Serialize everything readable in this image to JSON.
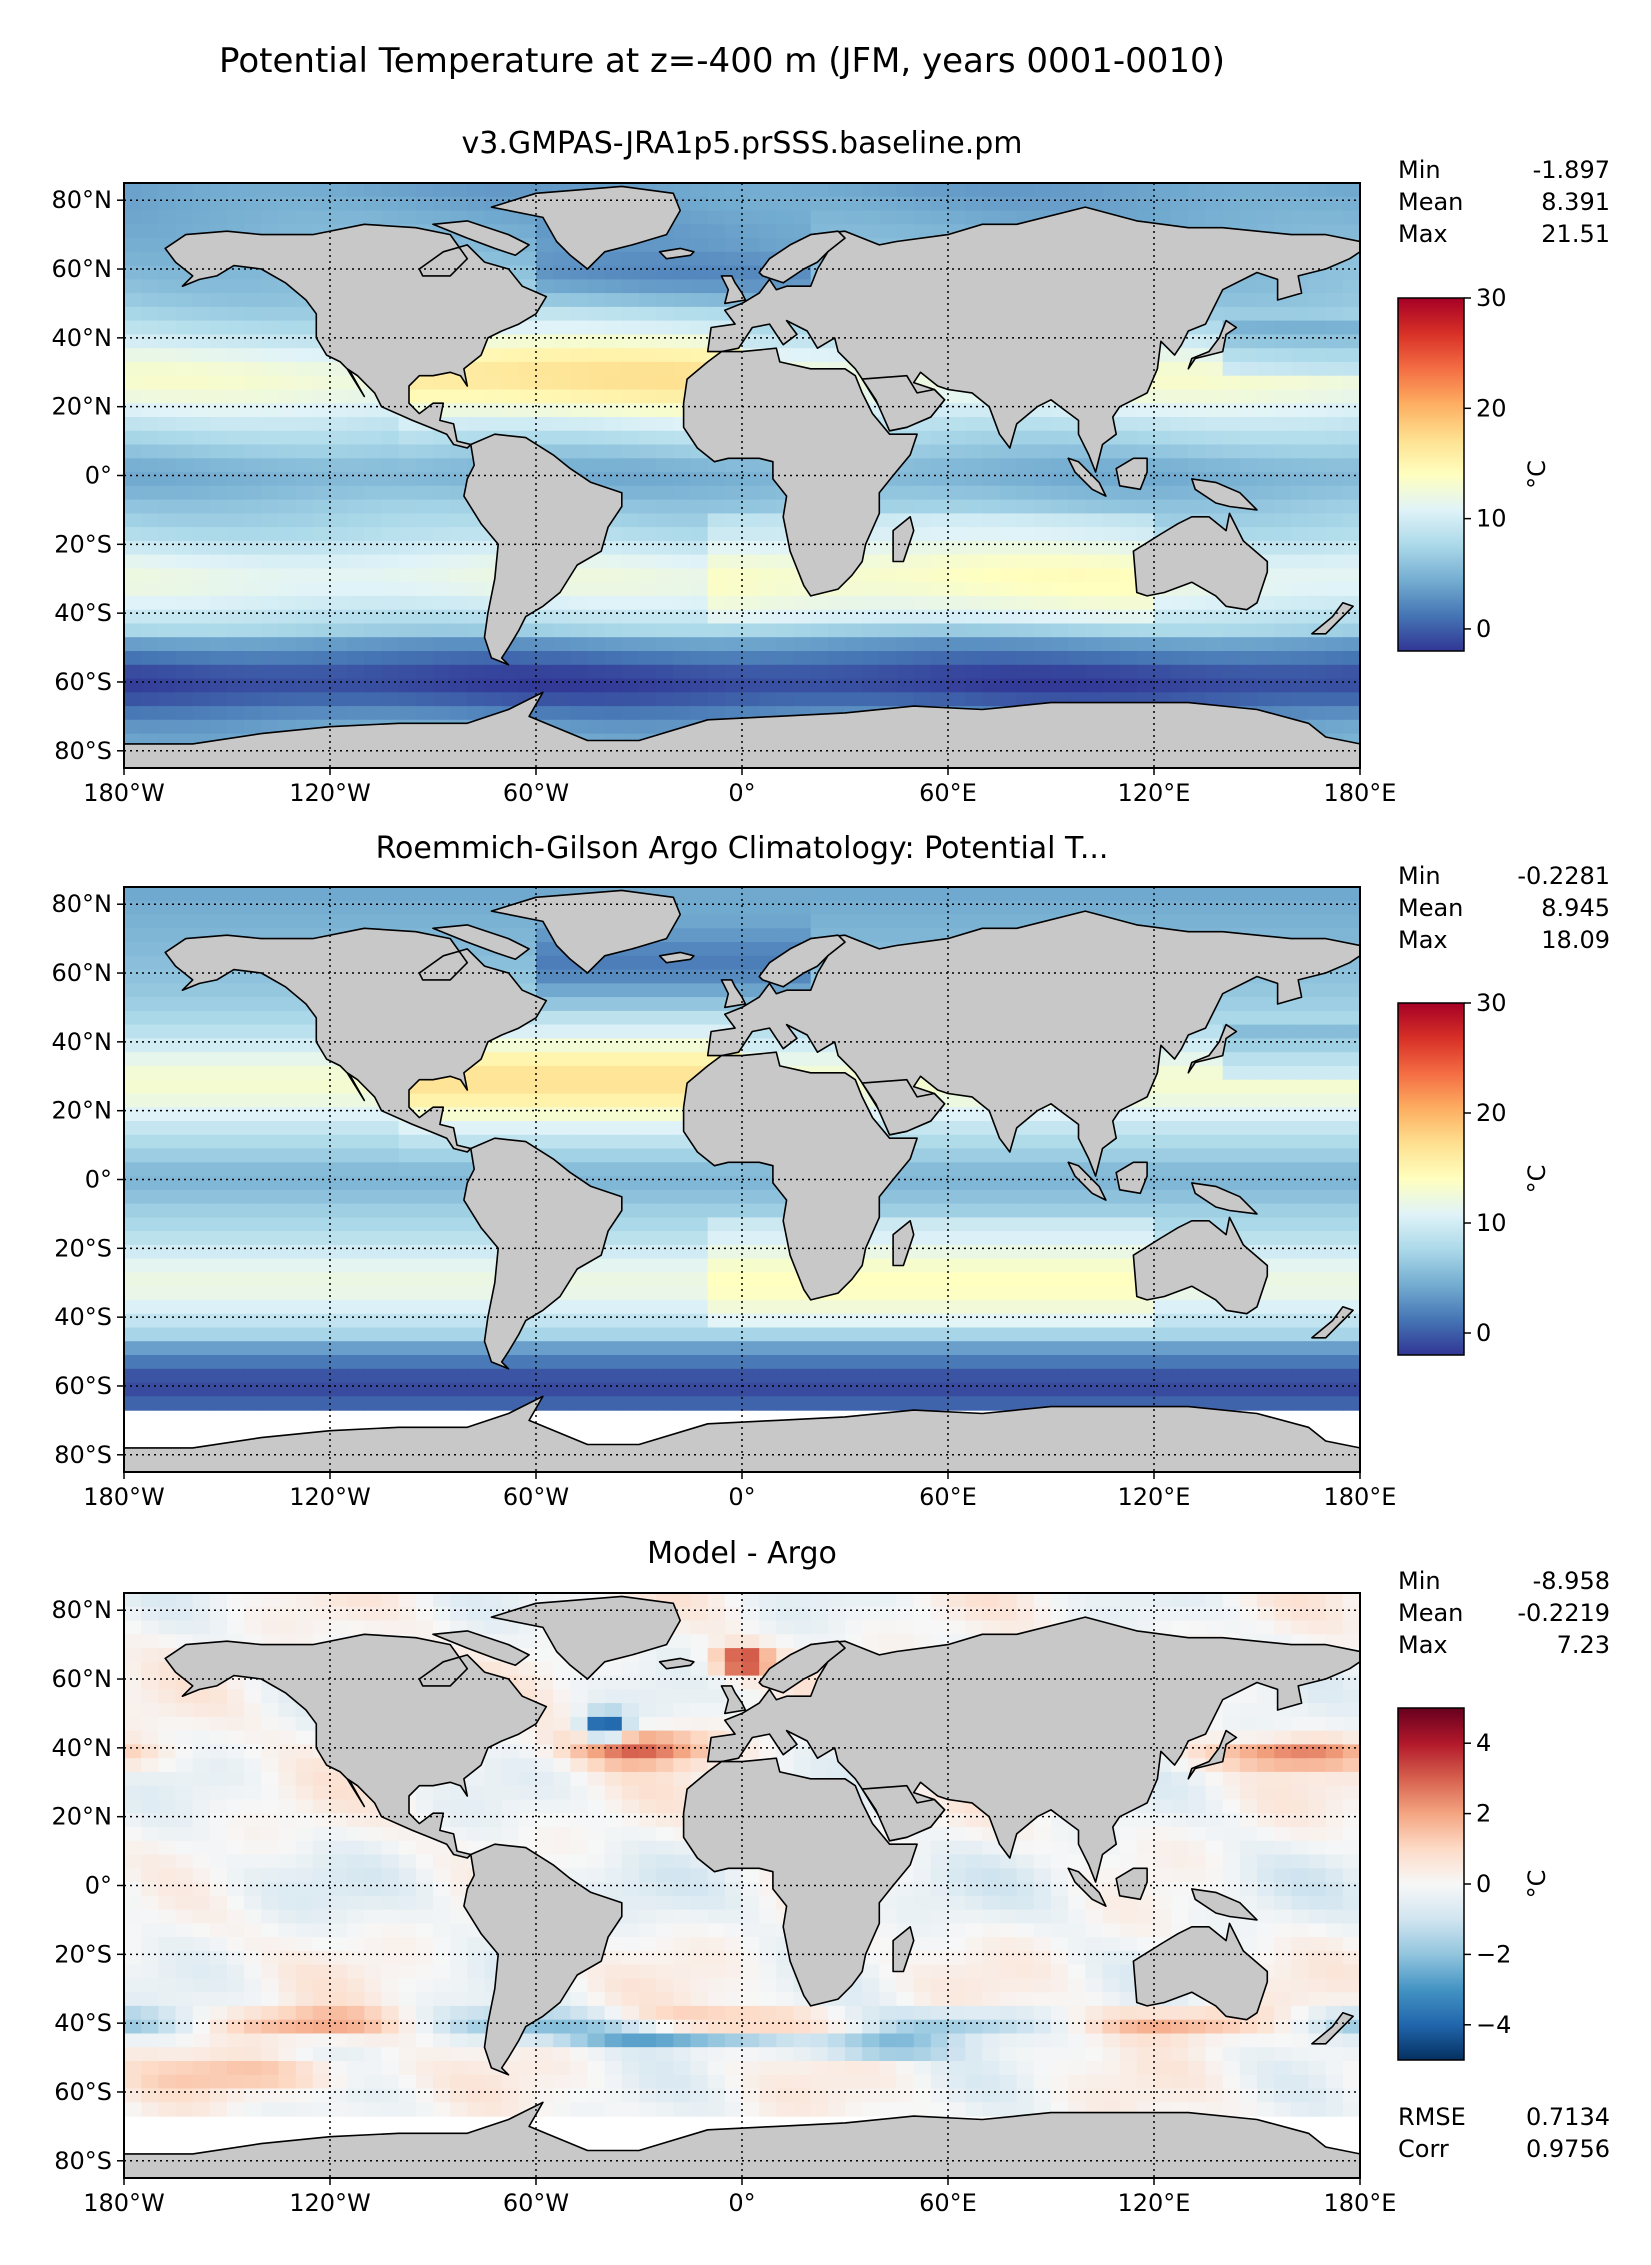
{
  "figure": {
    "suptitle": "Potential Temperature at z=-400 m (JFM, years 0001-0010)"
  },
  "colors": {
    "land": "#c8c8c8",
    "coast": "#000000",
    "sst_scale": [
      "#313695",
      "#4575b4",
      "#74add1",
      "#abd9e9",
      "#e0f3f8",
      "#ffffbf",
      "#fee090",
      "#fdae61",
      "#f46d43",
      "#d73027",
      "#a50026"
    ],
    "diff_scale": [
      "#053061",
      "#2166ac",
      "#4393c3",
      "#92c5de",
      "#d1e5f0",
      "#f7f7f7",
      "#fddbc7",
      "#f4a582",
      "#d6604d",
      "#b2182b",
      "#67001f"
    ]
  },
  "axes": {
    "lon_ticks": [
      "180°W",
      "120°W",
      "60°W",
      "0°",
      "60°E",
      "120°E",
      "180°E"
    ],
    "lat_ticks": [
      "80°N",
      "60°N",
      "40°N",
      "20°N",
      "0°",
      "20°S",
      "40°S",
      "60°S",
      "80°S"
    ]
  },
  "chart_data": [
    {
      "type": "heatmap",
      "title": "v3.GMPAS-JRA1p5.prSSS.baseline.pm",
      "field": "model",
      "stats": [
        {
          "label": "Min",
          "value": "-1.897"
        },
        {
          "label": "Mean",
          "value": "8.391"
        },
        {
          "label": "Max",
          "value": "21.51"
        }
      ],
      "colorbar": {
        "label": "°C",
        "range": [
          -2,
          30
        ],
        "ticks": [
          "0",
          "10",
          "20",
          "30"
        ],
        "tick_values": [
          0,
          10,
          20,
          30
        ]
      },
      "x_range": [
        -180,
        180
      ],
      "y_range": [
        -85,
        85
      ]
    },
    {
      "type": "heatmap",
      "title": "Roemmich-Gilson Argo Climatology: Potential T...",
      "field": "obs",
      "stats": [
        {
          "label": "Min",
          "value": "-0.2281"
        },
        {
          "label": "Mean",
          "value": "8.945"
        },
        {
          "label": "Max",
          "value": "18.09"
        }
      ],
      "colorbar": {
        "label": "°C",
        "range": [
          -2,
          30
        ],
        "ticks": [
          "0",
          "10",
          "20",
          "30"
        ],
        "tick_values": [
          0,
          10,
          20,
          30
        ]
      },
      "x_range": [
        -180,
        180
      ],
      "y_range": [
        -85,
        85
      ]
    },
    {
      "type": "heatmap",
      "title": "Model - Argo",
      "field": "diff",
      "stats": [
        {
          "label": "Min",
          "value": "-8.958"
        },
        {
          "label": "Mean",
          "value": "-0.2219"
        },
        {
          "label": "Max",
          "value": "7.23"
        }
      ],
      "extra_stats": [
        {
          "label": "RMSE",
          "value": "0.7134"
        },
        {
          "label": "Corr",
          "value": "0.9756"
        }
      ],
      "colorbar": {
        "label": "°C",
        "range": [
          -5,
          5
        ],
        "ticks": [
          "4",
          "2",
          "0",
          "−2",
          "−4"
        ],
        "tick_values": [
          4,
          2,
          0,
          -2,
          -4
        ]
      },
      "x_range": [
        -180,
        180
      ],
      "y_range": [
        -85,
        85
      ]
    }
  ]
}
